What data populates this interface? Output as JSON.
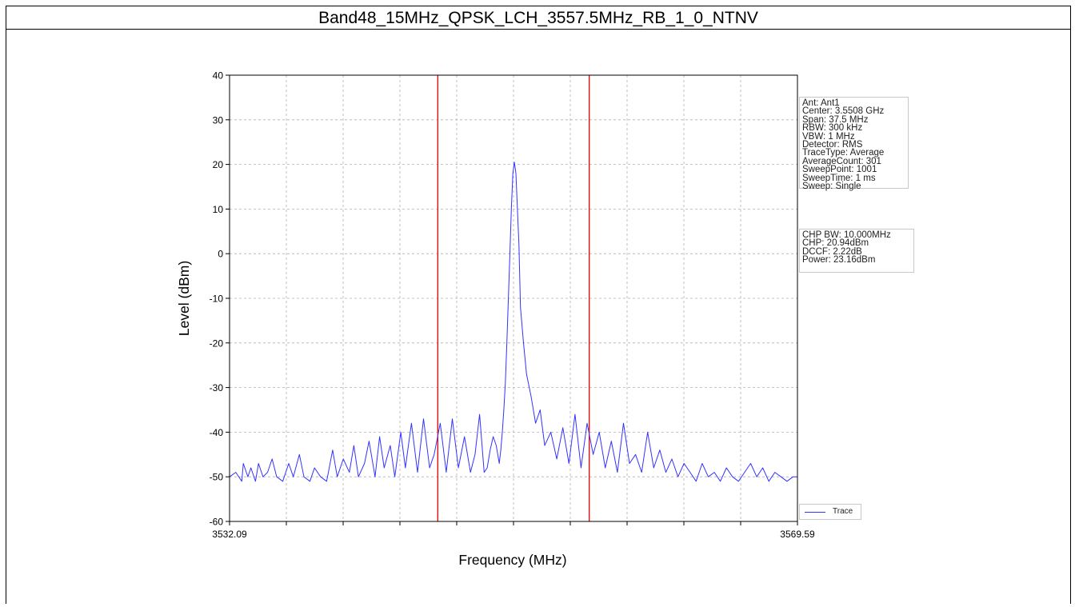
{
  "title": "Band48_15MHz_QPSK_LCH_3557.5MHz_RB_1_0_NTNV",
  "settings": [
    "Ant: Ant1",
    "Center: 3.5508 GHz",
    "Span: 37.5 MHz",
    "RBW: 300 kHz",
    "VBW: 1 MHz",
    "Detector: RMS",
    "TraceType: Average",
    "AverageCount: 301",
    "SweepPoint: 1001",
    "SweepTime: 1 ms",
    "Sweep: Single"
  ],
  "results": [
    "CHP BW: 10.000MHz",
    "CHP: 20.94dBm",
    "DCCF: 2.22dB",
    "Power: 23.16dBm"
  ],
  "chart_data": {
    "type": "line",
    "title": "Band48_15MHz_QPSK_LCH_3557.5MHz_RB_1_0_NTNV",
    "xlabel": "Frequency (MHz)",
    "ylabel": "Level (dBm)",
    "xlim": [
      3532.09,
      3569.59
    ],
    "ylim": [
      -60,
      40
    ],
    "xtick_labels": [
      "3532.09",
      "3569.59"
    ],
    "yticks": [
      40,
      30,
      20,
      10,
      0,
      -10,
      -20,
      -30,
      -40,
      -50,
      -60
    ],
    "grid": true,
    "legend_position": "bottom-right outside plot",
    "channel_markers": [
      3545.84,
      3555.84
    ],
    "colors": {
      "trace": "#3333ff",
      "markers": "#ee0000",
      "grid": "#b0b0b0"
    },
    "series": [
      {
        "name": "Trace",
        "x": [
          3532.09,
          3532.5,
          3532.9,
          3533.0,
          3533.3,
          3533.5,
          3533.8,
          3534.0,
          3534.3,
          3534.6,
          3534.9,
          3535.2,
          3535.6,
          3536.0,
          3536.3,
          3536.7,
          3537.0,
          3537.4,
          3537.7,
          3538.1,
          3538.5,
          3538.9,
          3539.2,
          3539.6,
          3540.0,
          3540.3,
          3540.6,
          3541.0,
          3541.3,
          3541.7,
          3542.0,
          3542.3,
          3542.7,
          3543.0,
          3543.4,
          3543.7,
          3544.1,
          3544.5,
          3544.9,
          3545.3,
          3545.6,
          3546.0,
          3546.4,
          3546.8,
          3547.2,
          3547.6,
          3548.0,
          3548.3,
          3548.6,
          3548.9,
          3549.1,
          3549.3,
          3549.5,
          3549.7,
          3549.9,
          3550.0,
          3550.1,
          3550.2,
          3550.3,
          3550.4,
          3550.5,
          3550.6,
          3550.7,
          3550.8,
          3550.9,
          3551.0,
          3551.1,
          3551.2,
          3551.3,
          3551.5,
          3551.7,
          3552.0,
          3552.3,
          3552.6,
          3552.9,
          3553.3,
          3553.7,
          3554.1,
          3554.5,
          3554.9,
          3555.3,
          3555.7,
          3556.1,
          3556.5,
          3556.9,
          3557.3,
          3557.7,
          3558.1,
          3558.5,
          3558.9,
          3559.3,
          3559.7,
          3560.1,
          3560.5,
          3560.9,
          3561.3,
          3561.7,
          3562.1,
          3562.5,
          3562.9,
          3563.3,
          3563.7,
          3564.1,
          3564.5,
          3564.9,
          3565.3,
          3565.7,
          3566.1,
          3566.5,
          3566.9,
          3567.3,
          3567.7,
          3568.1,
          3568.5,
          3568.9,
          3569.3,
          3569.59
        ],
        "y": [
          -50,
          -49,
          -51,
          -47,
          -50,
          -48,
          -51,
          -47,
          -50,
          -49,
          -46,
          -50,
          -51,
          -47,
          -50,
          -45,
          -50,
          -51,
          -48,
          -50,
          -51,
          -44,
          -50,
          -46,
          -49,
          -43,
          -50,
          -47,
          -42,
          -50,
          -41,
          -48,
          -43,
          -50,
          -40,
          -48,
          -38,
          -49,
          -37,
          -48,
          -45,
          -38,
          -49,
          -37,
          -48,
          -41,
          -49,
          -45,
          -36,
          -49,
          -48,
          -44,
          -41,
          -43,
          -47,
          -44,
          -40,
          -35,
          -29,
          -20,
          -10,
          0,
          10,
          18,
          20.5,
          18,
          10,
          2,
          -12,
          -20,
          -27,
          -32,
          -38,
          -35,
          -43,
          -40,
          -46,
          -39,
          -47,
          -36,
          -48,
          -38,
          -45,
          -40,
          -48,
          -42,
          -49,
          -38,
          -47,
          -45,
          -49,
          -40,
          -48,
          -44,
          -49,
          -46,
          -50,
          -47,
          -49,
          -51,
          -47,
          -50,
          -49,
          -51,
          -48,
          -50,
          -51,
          -49,
          -47,
          -50,
          -48,
          -51,
          -49,
          -50,
          -51,
          -50,
          -50
        ]
      }
    ]
  }
}
